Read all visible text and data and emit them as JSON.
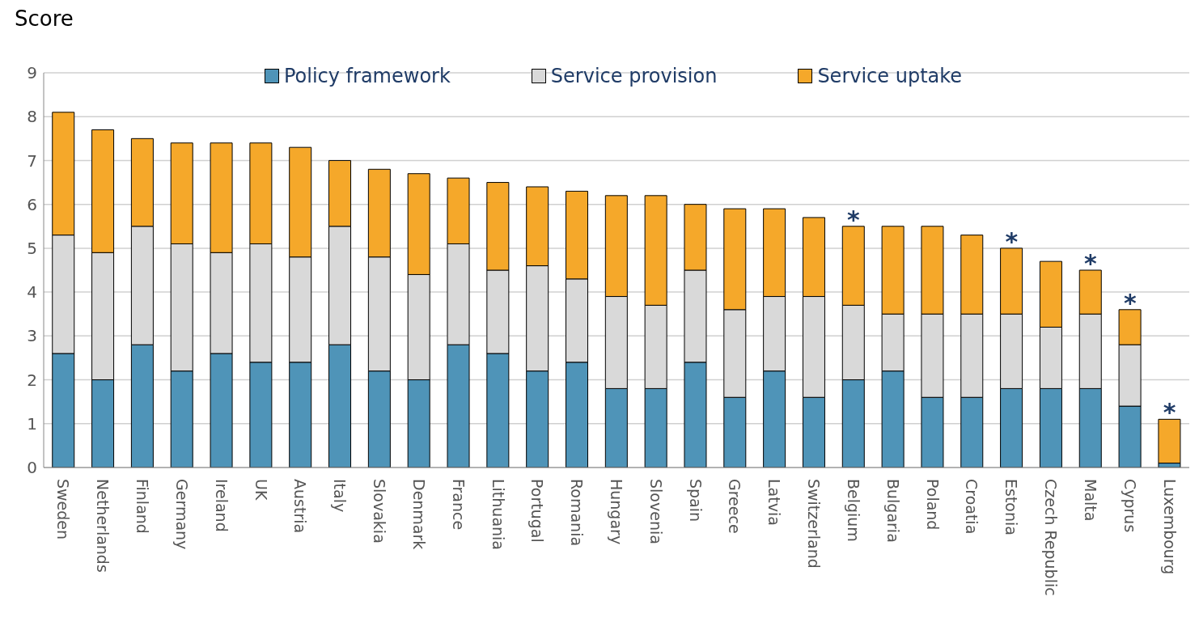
{
  "chart_data": {
    "type": "bar",
    "ylabel": "Score",
    "stacked": true,
    "categories": [
      "Sweden",
      "Netherlands",
      "Finland",
      "Germany",
      "Ireland",
      "UK",
      "Austria",
      "Italy",
      "Slovakia",
      "Denmark",
      "France",
      "Lithuania",
      "Portugal",
      "Romania",
      "Hungary",
      "Slovenia",
      "Spain",
      "Greece",
      "Latvia",
      "Switzerland",
      "Belgium",
      "Bulgaria",
      "Poland",
      "Croatia",
      "Estonia",
      "Czech Republic",
      "Malta",
      "Cyprus",
      "Luxembourg"
    ],
    "series": [
      {
        "name": "Policy framework",
        "color": "#4f94b8",
        "values": [
          2.6,
          2.0,
          2.8,
          2.2,
          2.6,
          2.4,
          2.4,
          2.8,
          2.2,
          2.0,
          2.8,
          2.6,
          2.2,
          2.4,
          1.8,
          1.8,
          2.4,
          1.6,
          2.2,
          1.6,
          2.0,
          2.2,
          1.6,
          1.6,
          1.8,
          1.8,
          1.8,
          1.4,
          0.1
        ]
      },
      {
        "name": "Service provision",
        "color": "#d9d9d9",
        "values": [
          2.7,
          2.9,
          2.7,
          2.9,
          2.3,
          2.7,
          2.4,
          2.7,
          2.6,
          2.4,
          2.3,
          1.9,
          2.4,
          1.9,
          2.1,
          1.9,
          2.1,
          2.0,
          1.7,
          2.3,
          1.7,
          1.3,
          1.9,
          1.9,
          1.7,
          1.4,
          1.7,
          1.4,
          0
        ]
      },
      {
        "name": "Service uptake",
        "color": "#f5a82a",
        "values": [
          2.8,
          2.8,
          2.0,
          2.3,
          2.5,
          2.3,
          2.5,
          1.5,
          2.0,
          2.3,
          1.5,
          2.0,
          1.8,
          2.0,
          2.3,
          2.5,
          1.5,
          2.3,
          2.0,
          1.8,
          1.8,
          2.0,
          2.0,
          1.8,
          1.5,
          1.5,
          1.0,
          0.8,
          1.0
        ]
      }
    ],
    "ylim": [
      0,
      9
    ],
    "yticks": [
      0,
      1,
      2,
      3,
      4,
      5,
      6,
      7,
      8,
      9
    ],
    "grid": "y",
    "legend": "top",
    "annotations": [
      {
        "text": "*",
        "x": "Belgium",
        "y": 5.5
      },
      {
        "text": "*",
        "x": "Estonia",
        "y": 5.0
      },
      {
        "text": "*",
        "x": "Malta",
        "y": 4.5
      },
      {
        "text": "*",
        "x": "Cyprus",
        "y": 3.6
      },
      {
        "text": "*",
        "x": "Luxembourg",
        "y": 1.1
      }
    ]
  }
}
